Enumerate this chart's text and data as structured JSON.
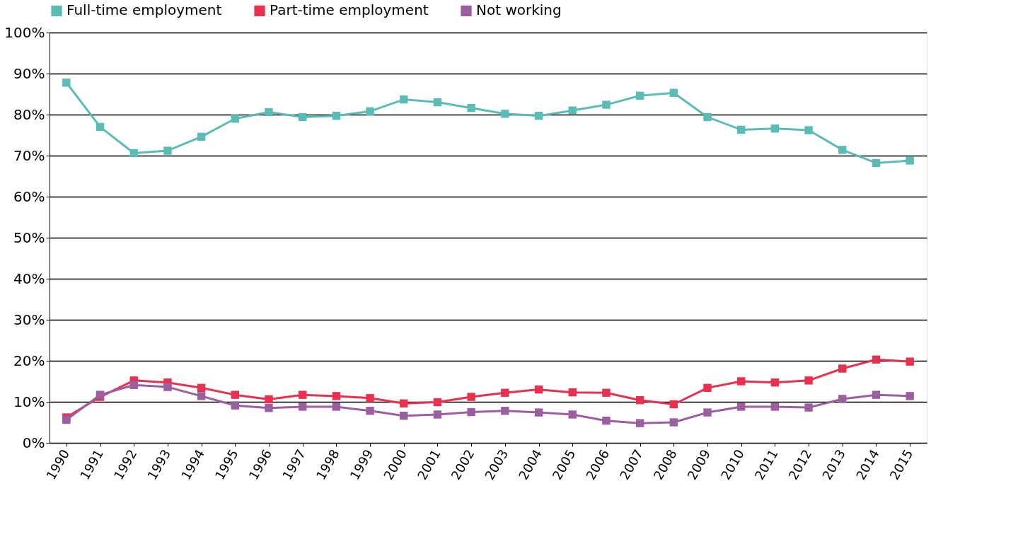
{
  "chart_data": {
    "type": "line",
    "categories": [
      "1990",
      "1991",
      "1992",
      "1993",
      "1994",
      "1995",
      "1996",
      "1997",
      "1998",
      "1999",
      "2000",
      "2001",
      "2002",
      "2003",
      "2004",
      "2005",
      "2006",
      "2007",
      "2008",
      "2009",
      "2010",
      "2011",
      "2012",
      "2013",
      "2014",
      "2015"
    ],
    "series": [
      {
        "name": "Full-time employment",
        "color": "#5bbcb5",
        "values": [
          87.8,
          77.0,
          70.6,
          71.2,
          74.6,
          79.0,
          80.6,
          79.4,
          79.7,
          80.8,
          83.7,
          83.0,
          81.6,
          80.2,
          79.7,
          81.0,
          82.4,
          84.6,
          85.3,
          79.4,
          76.3,
          76.6,
          76.2,
          71.4,
          68.2,
          68.8
        ]
      },
      {
        "name": "Part-time employment",
        "color": "#e8304f",
        "values": [
          6.2,
          11.2,
          15.2,
          14.7,
          13.4,
          11.7,
          10.6,
          11.7,
          11.4,
          10.9,
          9.6,
          9.9,
          11.2,
          12.2,
          13.0,
          12.3,
          12.2,
          10.4,
          9.4,
          13.4,
          15.0,
          14.7,
          15.2,
          18.1,
          20.3,
          19.8
        ]
      },
      {
        "name": "Not working",
        "color": "#9b5fa0",
        "values": [
          5.6,
          11.7,
          14.1,
          13.6,
          11.4,
          9.1,
          8.5,
          8.8,
          8.8,
          7.8,
          6.6,
          6.9,
          7.5,
          7.8,
          7.4,
          6.9,
          5.4,
          4.8,
          5.0,
          7.4,
          8.8,
          8.8,
          8.6,
          10.7,
          11.7,
          11.4
        ]
      }
    ],
    "ylim": [
      0,
      100
    ],
    "yticks": [
      {
        "value": 0,
        "label": "0%"
      },
      {
        "value": 10,
        "label": "10%"
      },
      {
        "value": 20,
        "label": "20%"
      },
      {
        "value": 30,
        "label": "30%"
      },
      {
        "value": 40,
        "label": "40%"
      },
      {
        "value": 50,
        "label": "50%"
      },
      {
        "value": 60,
        "label": "60%"
      },
      {
        "value": 70,
        "label": "70%"
      },
      {
        "value": 80,
        "label": "80%"
      },
      {
        "value": 90,
        "label": "90%"
      },
      {
        "value": 100,
        "label": "100%"
      }
    ],
    "grid": "y",
    "legend": "top",
    "marker": "square",
    "line_style": "solid"
  }
}
